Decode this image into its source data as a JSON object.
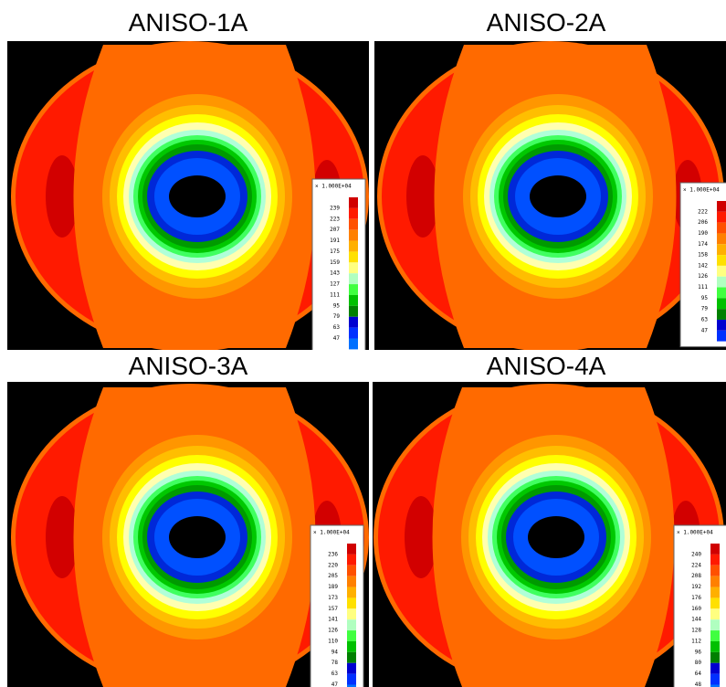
{
  "panels": [
    {
      "title": "ANISO-1A",
      "legend_header": "× 1.000E+04",
      "legend_labels": [
        "239",
        "223",
        "207",
        "191",
        "175",
        "159",
        "143",
        "127",
        "111",
        "95",
        "79",
        "63",
        "47"
      ]
    },
    {
      "title": "ANISO-2A",
      "legend_header": "× 1.000E+04",
      "legend_labels": [
        "222",
        "206",
        "190",
        "174",
        "158",
        "142",
        "126",
        "111",
        "95",
        "79",
        "63",
        "47"
      ]
    },
    {
      "title": "ANISO-3A",
      "legend_header": "× 1.000E+04",
      "legend_labels": [
        "236",
        "220",
        "205",
        "189",
        "173",
        "157",
        "141",
        "126",
        "110",
        "94",
        "78",
        "63",
        "47"
      ]
    },
    {
      "title": "ANISO-4A",
      "legend_header": "× 1.000E+04",
      "legend_labels": [
        "240",
        "224",
        "208",
        "192",
        "176",
        "160",
        "144",
        "128",
        "112",
        "96",
        "80",
        "64",
        "48"
      ]
    }
  ]
}
